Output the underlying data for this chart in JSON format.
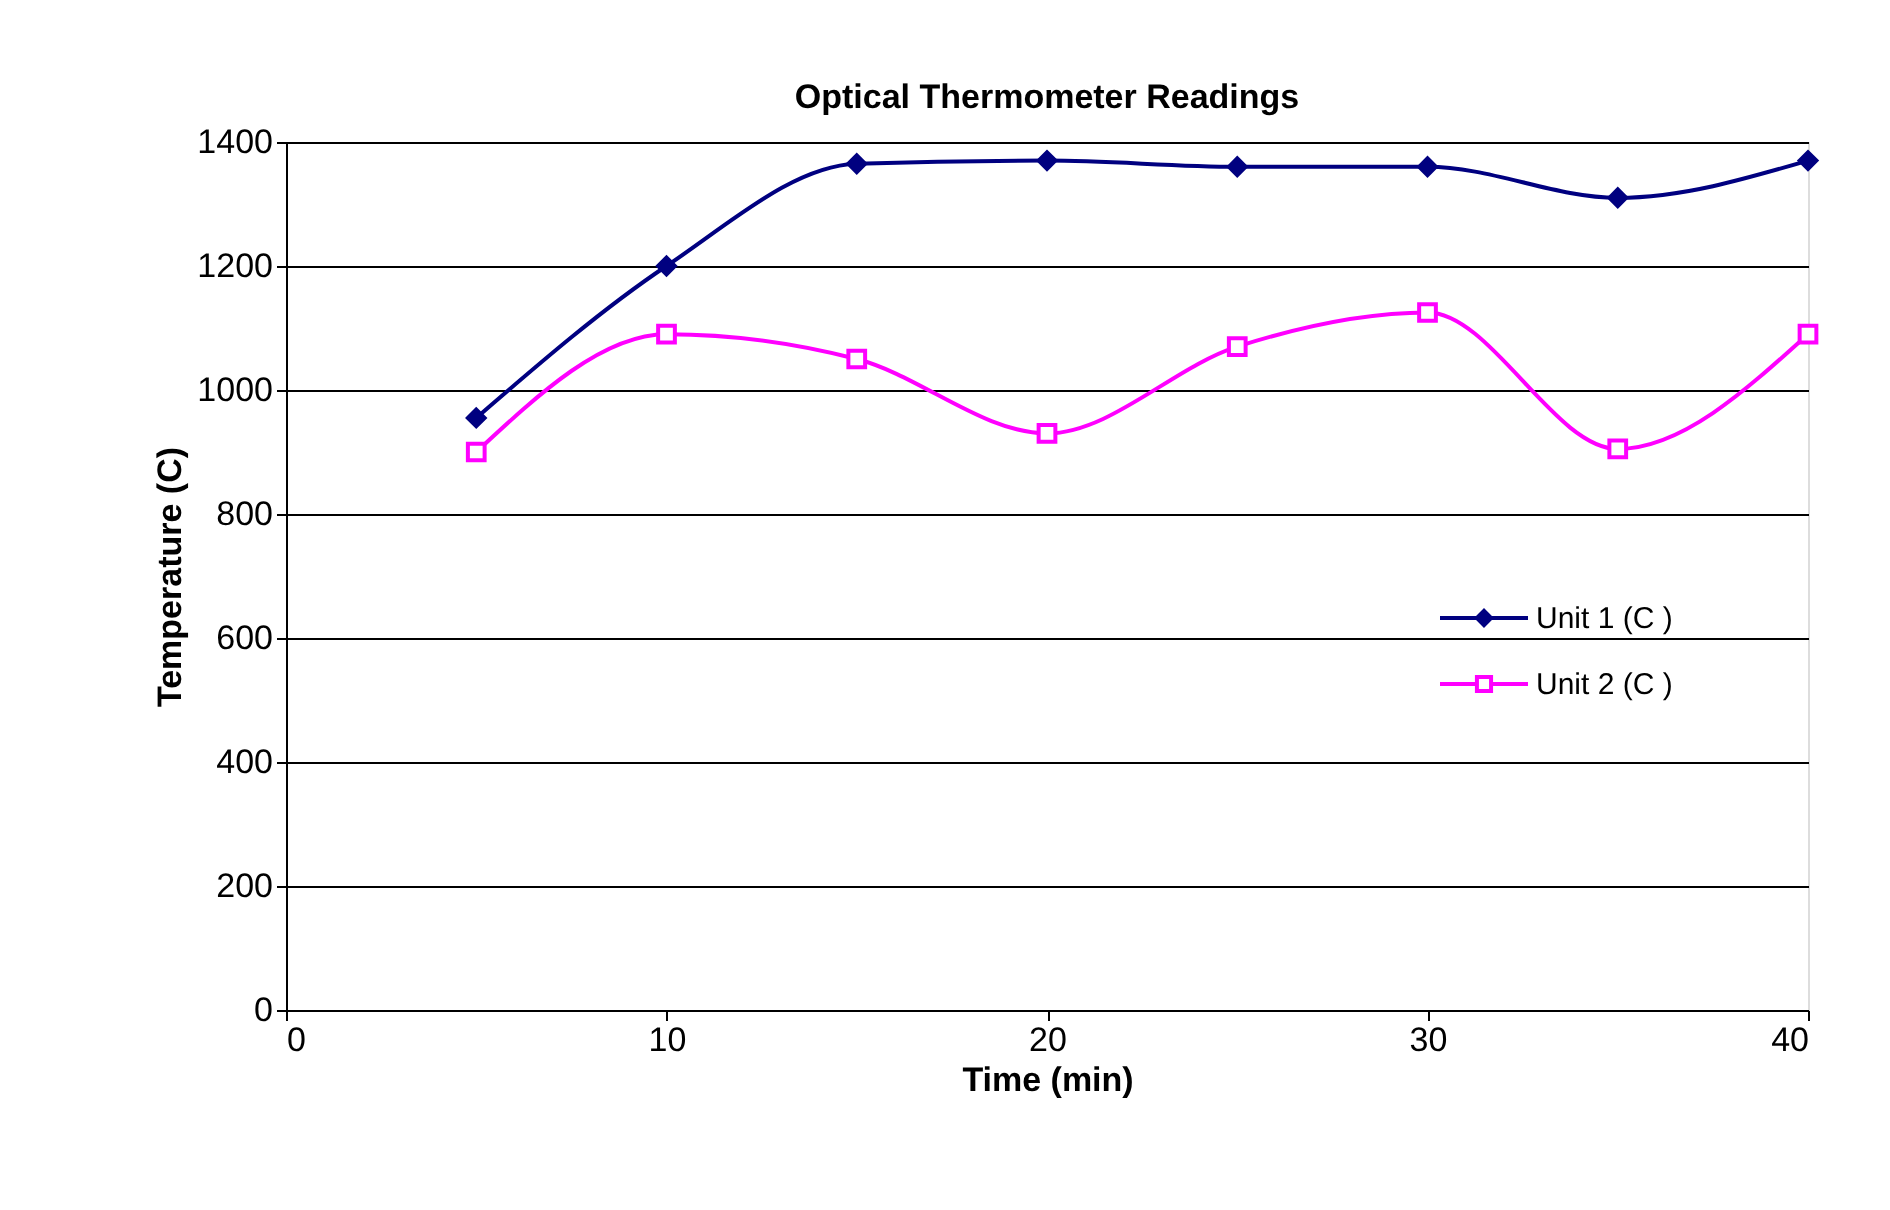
{
  "chart_data": {
    "type": "line",
    "title": "Optical Thermometer Readings",
    "xlabel": "Time (min)",
    "ylabel": "Temperature (C)",
    "x": [
      5,
      10,
      15,
      20,
      25,
      30,
      35,
      40
    ],
    "series": [
      {
        "name": "Unit 1 (C )",
        "color": "#000080",
        "marker": "diamond",
        "values": [
          955,
          1200,
          1365,
          1370,
          1360,
          1360,
          1310,
          1370
        ]
      },
      {
        "name": "Unit 2 (C )",
        "color": "#ff00ff",
        "marker": "square",
        "values": [
          900,
          1090,
          1050,
          930,
          1070,
          1125,
          905,
          1090
        ]
      }
    ],
    "xlim": [
      0,
      40
    ],
    "xticks": [
      0,
      10,
      20,
      30,
      40
    ],
    "ylim": [
      0,
      1400
    ],
    "yticks": [
      0,
      200,
      400,
      600,
      800,
      1000,
      1200,
      1400
    ],
    "grid": "y",
    "legend": "right"
  }
}
